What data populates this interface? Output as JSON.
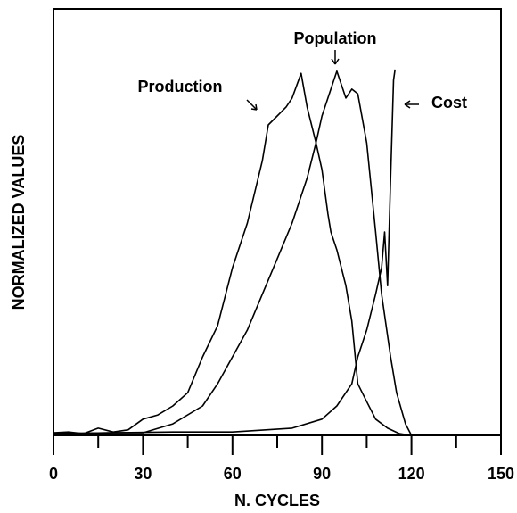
{
  "chart_data": {
    "type": "line",
    "xlabel": "N. CYCLES",
    "ylabel": "NORMALIZED VALUES",
    "xlim": [
      0,
      150
    ],
    "xticks": [
      0,
      30,
      60,
      90,
      120,
      150
    ],
    "xminorticks": [
      15,
      45,
      75,
      105,
      135
    ],
    "ylim": [
      0,
      1
    ],
    "grid": false,
    "series": [
      {
        "name": "Production",
        "color": "#000000",
        "x": [
          0,
          5,
          10,
          15,
          20,
          25,
          30,
          35,
          40,
          45,
          50,
          55,
          60,
          65,
          70,
          72,
          75,
          78,
          80,
          83,
          85,
          88,
          90,
          92,
          93,
          95,
          98,
          100,
          102,
          105,
          108,
          112,
          116,
          120
        ],
        "values": [
          0.006,
          0.008,
          0.004,
          0.017,
          0.008,
          0.013,
          0.038,
          0.048,
          0.069,
          0.1,
          0.184,
          0.257,
          0.393,
          0.498,
          0.644,
          0.728,
          0.749,
          0.77,
          0.791,
          0.849,
          0.77,
          0.686,
          0.623,
          0.519,
          0.477,
          0.435,
          0.351,
          0.268,
          0.121,
          0.079,
          0.038,
          0.017,
          0.004,
          0
        ]
      },
      {
        "name": "Population",
        "color": "#000000",
        "x": [
          0,
          20,
          30,
          40,
          50,
          55,
          60,
          65,
          70,
          75,
          80,
          85,
          88,
          90,
          93,
          95,
          98,
          100,
          102,
          105,
          108,
          110,
          113,
          115,
          118,
          120
        ],
        "values": [
          0.004,
          0.006,
          0.006,
          0.027,
          0.069,
          0.121,
          0.184,
          0.247,
          0.331,
          0.414,
          0.498,
          0.603,
          0.686,
          0.749,
          0.812,
          0.854,
          0.791,
          0.812,
          0.801,
          0.686,
          0.477,
          0.331,
          0.184,
          0.1,
          0.027,
          0
        ]
      },
      {
        "name": "Cost",
        "color": "#000000",
        "x": [
          0,
          20,
          40,
          60,
          80,
          90,
          95,
          100,
          102,
          105,
          108,
          110,
          111,
          112,
          113,
          114,
          114.5
        ],
        "values": [
          0.004,
          0.006,
          0.008,
          0.008,
          0.017,
          0.038,
          0.069,
          0.121,
          0.184,
          0.247,
          0.331,
          0.393,
          0.477,
          0.351,
          0.603,
          0.833,
          0.858
        ]
      }
    ]
  }
}
